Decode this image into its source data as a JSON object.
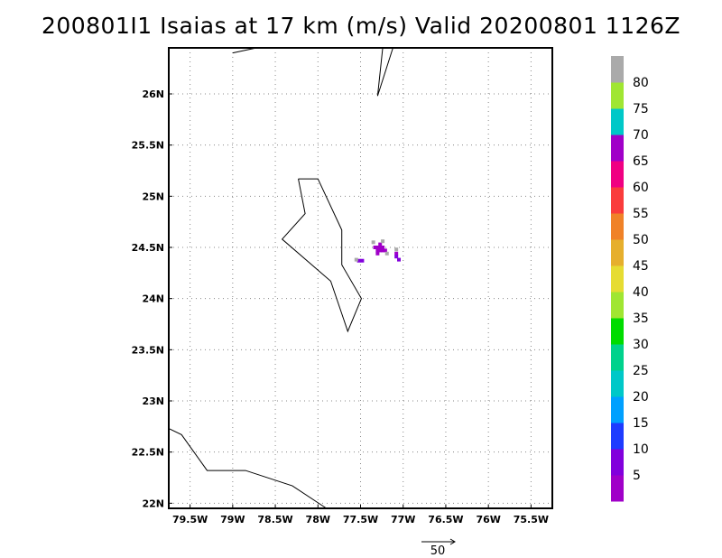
{
  "title": "200801I1 Isaias at 17 km (m/s) Valid 20200801 1126Z",
  "map": {
    "lon_range": [
      -79.75,
      -75.25
    ],
    "lat_range": [
      21.95,
      26.45
    ],
    "lon_ticks": [
      {
        "value": -79.5,
        "label": "79.5W"
      },
      {
        "value": -79.0,
        "label": "79W"
      },
      {
        "value": -78.5,
        "label": "78.5W"
      },
      {
        "value": -78.0,
        "label": "78W"
      },
      {
        "value": -77.5,
        "label": "77.5W"
      },
      {
        "value": -77.0,
        "label": "77W"
      },
      {
        "value": -76.5,
        "label": "76.5W"
      },
      {
        "value": -76.0,
        "label": "76W"
      },
      {
        "value": -75.5,
        "label": "75.5W"
      }
    ],
    "lat_ticks": [
      {
        "value": 22.0,
        "label": "22N"
      },
      {
        "value": 22.5,
        "label": "22.5N"
      },
      {
        "value": 23.0,
        "label": "23N"
      },
      {
        "value": 23.5,
        "label": "23.5N"
      },
      {
        "value": 24.0,
        "label": "24N"
      },
      {
        "value": 24.5,
        "label": "24.5N"
      },
      {
        "value": 25.0,
        "label": "25N"
      },
      {
        "value": 25.5,
        "label": "25.5N"
      },
      {
        "value": 26.0,
        "label": "26N"
      }
    ],
    "grid": true,
    "coastlines": [
      [
        [
          -79.0,
          26.4
        ],
        [
          -78.72,
          26.45
        ]
      ],
      [
        [
          -77.24,
          26.45
        ],
        [
          -77.3,
          25.98
        ],
        [
          -77.12,
          26.45
        ]
      ],
      [
        [
          -78.23,
          25.17
        ],
        [
          -78.0,
          25.17
        ],
        [
          -77.72,
          24.67
        ],
        [
          -77.72,
          24.33
        ],
        [
          -77.49,
          24.0
        ],
        [
          -77.65,
          23.68
        ],
        [
          -77.85,
          24.17
        ],
        [
          -78.42,
          24.58
        ],
        [
          -78.15,
          24.83
        ],
        [
          -78.23,
          25.17
        ]
      ],
      [
        [
          -79.75,
          22.73
        ],
        [
          -79.6,
          22.67
        ],
        [
          -79.3,
          22.32
        ],
        [
          -78.85,
          22.32
        ],
        [
          -78.3,
          22.17
        ],
        [
          -77.9,
          21.95
        ]
      ]
    ],
    "wind_cells": [
      {
        "lon": -77.3,
        "lat": 24.5,
        "speed": 3
      },
      {
        "lon": -77.27,
        "lat": 24.5,
        "speed": 3
      },
      {
        "lon": -77.24,
        "lat": 24.5,
        "speed": 3
      },
      {
        "lon": -77.3,
        "lat": 24.47,
        "speed": 3
      },
      {
        "lon": -77.27,
        "lat": 24.47,
        "speed": 2
      },
      {
        "lon": -77.24,
        "lat": 24.47,
        "speed": 3
      },
      {
        "lon": -77.27,
        "lat": 24.53,
        "speed": 3
      },
      {
        "lon": -77.3,
        "lat": 24.44,
        "speed": 3
      },
      {
        "lon": -77.21,
        "lat": 24.47,
        "speed": 3
      },
      {
        "lon": -77.33,
        "lat": 24.5,
        "speed": 3
      },
      {
        "lon": -77.08,
        "lat": 24.44,
        "speed": 3
      },
      {
        "lon": -77.08,
        "lat": 24.41,
        "speed": 7
      },
      {
        "lon": -77.05,
        "lat": 24.38,
        "speed": 7
      },
      {
        "lon": -77.52,
        "lat": 24.37,
        "speed": 7
      },
      {
        "lon": -77.48,
        "lat": 24.37,
        "speed": 7
      },
      {
        "lon": -77.24,
        "lat": 24.56,
        "speed": 82
      },
      {
        "lon": -77.35,
        "lat": 24.55,
        "speed": 82
      },
      {
        "lon": -77.55,
        "lat": 24.38,
        "speed": 82
      },
      {
        "lon": -77.08,
        "lat": 24.48,
        "speed": 82
      },
      {
        "lon": -77.19,
        "lat": 24.44,
        "speed": 82
      }
    ],
    "vector_scale": {
      "label": "50"
    }
  },
  "colorbar": {
    "colors": [
      "#a000c8",
      "#8200dc",
      "#1e3cff",
      "#00a0ff",
      "#00c8c8",
      "#00d28c",
      "#00dc00",
      "#a0e632",
      "#e6dc32",
      "#e6af2d",
      "#f08228",
      "#fa3c3c",
      "#f00082",
      "#a000c8",
      "#00c8c8",
      "#a0e632",
      "#aaaaaa"
    ],
    "labels": [
      "5",
      "10",
      "15",
      "20",
      "25",
      "30",
      "35",
      "40",
      "45",
      "50",
      "55",
      "60",
      "65",
      "70",
      "75",
      "80"
    ]
  },
  "colors": {
    "coast": "#000000",
    "grid": "#888888",
    "frame": "#000000"
  }
}
